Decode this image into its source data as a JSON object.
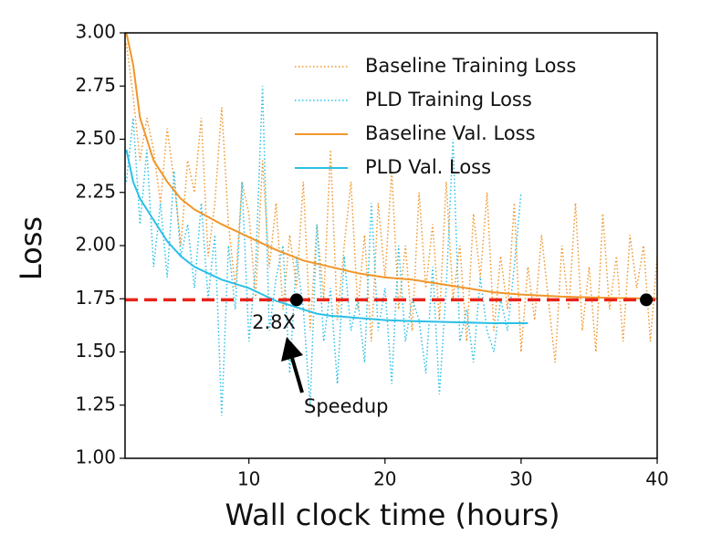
{
  "chart_data": {
    "type": "line",
    "xlabel": "Wall clock time (hours)",
    "ylabel": "Loss",
    "xlim": [
      0.9,
      40
    ],
    "ylim": [
      1.0,
      3.0
    ],
    "xticks": [
      10,
      20,
      30,
      40
    ],
    "yticks": [
      {
        "value": 1.0,
        "label": "1.00"
      },
      {
        "value": 1.25,
        "label": "1.25"
      },
      {
        "value": 1.5,
        "label": "1.50"
      },
      {
        "value": 1.75,
        "label": "1.75"
      },
      {
        "value": 2.0,
        "label": "2.00"
      },
      {
        "value": 2.25,
        "label": "2.25"
      },
      {
        "value": 2.5,
        "label": "2.50"
      },
      {
        "value": 2.75,
        "label": "2.75"
      },
      {
        "value": 3.0,
        "label": "3.00"
      }
    ],
    "legend": "upper right",
    "series": [
      {
        "name": "Baseline Training Loss",
        "color": "#f0962a",
        "style": "dotted",
        "x": [
          1,
          1.5,
          2,
          2.5,
          3,
          3.5,
          4,
          4.5,
          5,
          5.5,
          6,
          6.5,
          7,
          7.5,
          8,
          8.5,
          9,
          9.5,
          10,
          10.5,
          11,
          11.5,
          12,
          12.5,
          13,
          13.5,
          14,
          14.5,
          15,
          15.5,
          16,
          16.5,
          17,
          17.5,
          18,
          18.5,
          19,
          19.5,
          20,
          20.5,
          21,
          21.5,
          22,
          22.5,
          23,
          23.5,
          24,
          24.5,
          25,
          25.5,
          26,
          26.5,
          27,
          27.5,
          28,
          28.5,
          29,
          29.5,
          30,
          30.5,
          31,
          31.5,
          32,
          32.5,
          33,
          33.5,
          34,
          34.5,
          35,
          35.5,
          36,
          36.5,
          37,
          37.5,
          38,
          38.5,
          39,
          39.5,
          40
        ],
        "values": [
          2.95,
          2.7,
          2.4,
          2.6,
          2.45,
          2.2,
          2.55,
          2.3,
          2.0,
          2.4,
          2.25,
          2.6,
          1.95,
          2.2,
          2.65,
          2.1,
          1.8,
          2.3,
          2.15,
          1.75,
          2.4,
          1.9,
          2.2,
          1.7,
          2.05,
          1.8,
          2.3,
          1.6,
          2.1,
          1.75,
          2.45,
          1.65,
          2.0,
          2.3,
          1.7,
          2.05,
          1.55,
          2.2,
          1.85,
          2.35,
          1.7,
          2.0,
          1.6,
          2.25,
          1.8,
          2.1,
          1.65,
          2.3,
          1.75,
          2.0,
          1.55,
          2.15,
          1.85,
          2.25,
          1.6,
          1.95,
          1.7,
          2.2,
          1.5,
          1.9,
          1.65,
          2.05,
          1.75,
          1.45,
          2.0,
          1.7,
          2.2,
          1.6,
          1.9,
          1.5,
          2.15,
          1.7,
          1.95,
          1.55,
          2.05,
          1.8,
          2.0,
          1.55,
          1.95
        ]
      },
      {
        "name": "PLD Training Loss",
        "color": "#2bc0e6",
        "style": "dotted",
        "x": [
          1,
          1.5,
          2,
          2.5,
          3,
          3.5,
          4,
          4.5,
          5,
          5.5,
          6,
          6.5,
          7,
          7.5,
          8,
          8.5,
          9,
          9.5,
          10,
          10.5,
          11,
          11.5,
          12,
          12.5,
          13,
          13.5,
          14,
          14.5,
          15,
          15.5,
          16,
          16.5,
          17,
          17.5,
          18,
          18.5,
          19,
          19.5,
          20,
          20.5,
          21,
          21.5,
          22,
          22.5,
          23,
          23.5,
          24,
          24.5,
          25,
          25.5,
          26,
          26.5,
          27,
          27.5,
          28,
          28.5,
          29,
          29.5,
          30
        ],
        "values": [
          2.3,
          2.6,
          2.1,
          2.45,
          1.9,
          2.2,
          1.85,
          2.35,
          1.95,
          2.1,
          1.8,
          2.2,
          1.75,
          2.05,
          1.2,
          2.0,
          1.7,
          2.3,
          1.55,
          1.9,
          2.75,
          1.6,
          1.85,
          2.0,
          1.4,
          1.95,
          1.7,
          1.25,
          2.1,
          1.55,
          1.8,
          1.35,
          1.95,
          1.6,
          1.75,
          1.45,
          2.2,
          1.6,
          1.8,
          1.35,
          2.0,
          1.55,
          1.75,
          1.65,
          1.4,
          1.9,
          1.3,
          1.8,
          2.5,
          1.55,
          1.7,
          1.45,
          1.85,
          1.6,
          1.5,
          1.75,
          1.6,
          1.9,
          2.25
        ]
      },
      {
        "name": "Baseline Val. Loss",
        "color": "#f0962a",
        "style": "solid",
        "x": [
          1,
          1.5,
          2,
          3,
          4,
          5,
          6,
          8,
          10,
          12,
          14,
          16,
          18,
          20,
          22,
          25,
          28,
          30,
          33,
          36,
          40
        ],
        "values": [
          3.0,
          2.85,
          2.6,
          2.4,
          2.3,
          2.22,
          2.17,
          2.1,
          2.04,
          1.98,
          1.93,
          1.9,
          1.87,
          1.85,
          1.84,
          1.81,
          1.78,
          1.77,
          1.76,
          1.755,
          1.75
        ]
      },
      {
        "name": "PLD Val. Loss",
        "color": "#2bc0e6",
        "style": "solid",
        "x": [
          1,
          1.5,
          2,
          3,
          4,
          5,
          6,
          8,
          10,
          11,
          12,
          13,
          14,
          15,
          16,
          18,
          20,
          22,
          25,
          28,
          30.5
        ],
        "values": [
          2.45,
          2.3,
          2.22,
          2.12,
          2.02,
          1.95,
          1.9,
          1.84,
          1.8,
          1.77,
          1.74,
          1.72,
          1.7,
          1.68,
          1.67,
          1.66,
          1.65,
          1.645,
          1.64,
          1.635,
          1.635
        ]
      }
    ],
    "reference_line": {
      "value": 1.745,
      "color": "#e8231b"
    },
    "points": {
      "x": [
        13.5,
        39.2
      ],
      "values": [
        1.745,
        1.745
      ],
      "color": "#000000"
    },
    "annotations": [
      "2.8X",
      "Speedup"
    ]
  }
}
